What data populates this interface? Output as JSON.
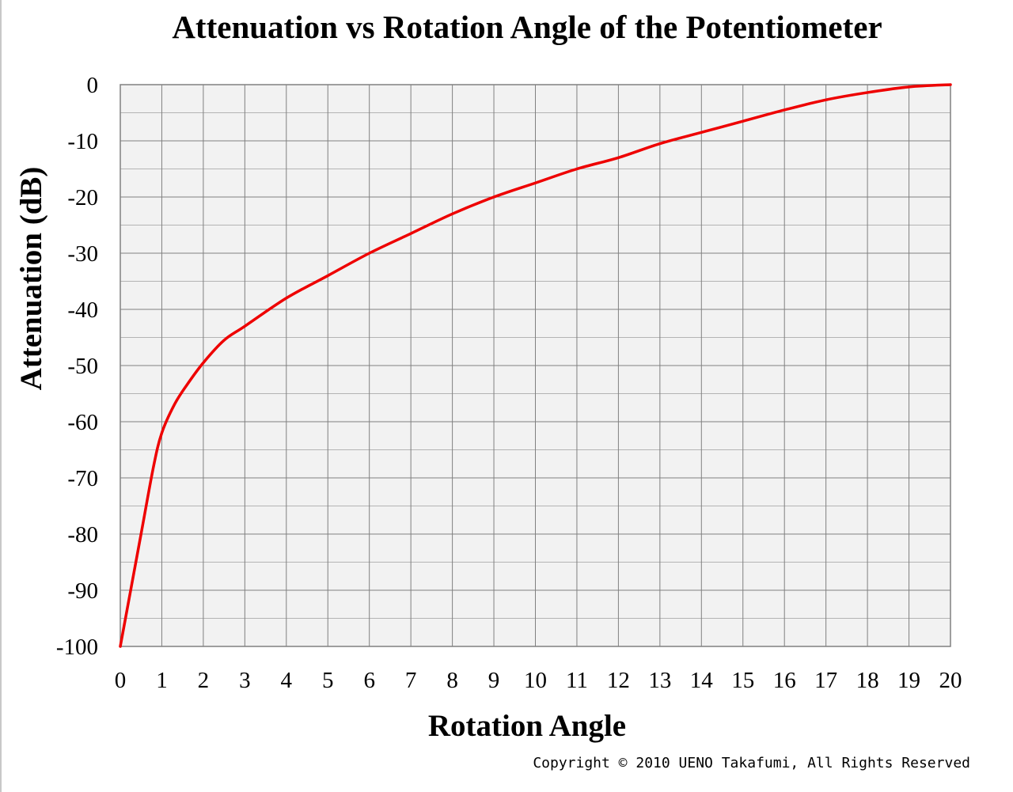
{
  "chart_data": {
    "type": "line",
    "title": "Attenuation vs Rotation Angle of  the Potentiometer",
    "xlabel": "Rotation Angle",
    "ylabel": "Attenuation (dB)",
    "xlim": [
      0,
      20
    ],
    "ylim": [
      -100,
      0
    ],
    "x_ticks": [
      "0",
      "1",
      "2",
      "3",
      "4",
      "5",
      "6",
      "7",
      "8",
      "9",
      "10",
      "11",
      "12",
      "13",
      "14",
      "15",
      "16",
      "17",
      "18",
      "19",
      "20"
    ],
    "y_ticks": [
      "0",
      "-10",
      "-20",
      "-30",
      "-40",
      "-50",
      "-60",
      "-70",
      "-80",
      "-90",
      "-100"
    ],
    "grid": true,
    "legend": "none",
    "series": [
      {
        "color": "#ee0000",
        "x": [
          0,
          0.5,
          0.8,
          1,
          1.3,
          1.6,
          2,
          2.5,
          3,
          4,
          5,
          6,
          7,
          8,
          9,
          10,
          11,
          12,
          13,
          14,
          15,
          16,
          17,
          18,
          19,
          20
        ],
        "y": [
          -100,
          -80,
          -68,
          -62,
          -57,
          -53.5,
          -49.5,
          -45.5,
          -43,
          -38,
          -34,
          -30,
          -26.5,
          -23,
          -20,
          -17.5,
          -15,
          -13,
          -10.5,
          -8.5,
          -6.5,
          -4.5,
          -2.7,
          -1.4,
          -0.4,
          0
        ]
      }
    ]
  },
  "style": {
    "plot_background": "#f2f2f2",
    "major_grid_color": "#808080",
    "minor_grid_color": "#b4b4b4",
    "line_color": "#ee0000"
  },
  "copyright": "Copyright © 2010 UENO Takafumi, All Rights Reserved"
}
